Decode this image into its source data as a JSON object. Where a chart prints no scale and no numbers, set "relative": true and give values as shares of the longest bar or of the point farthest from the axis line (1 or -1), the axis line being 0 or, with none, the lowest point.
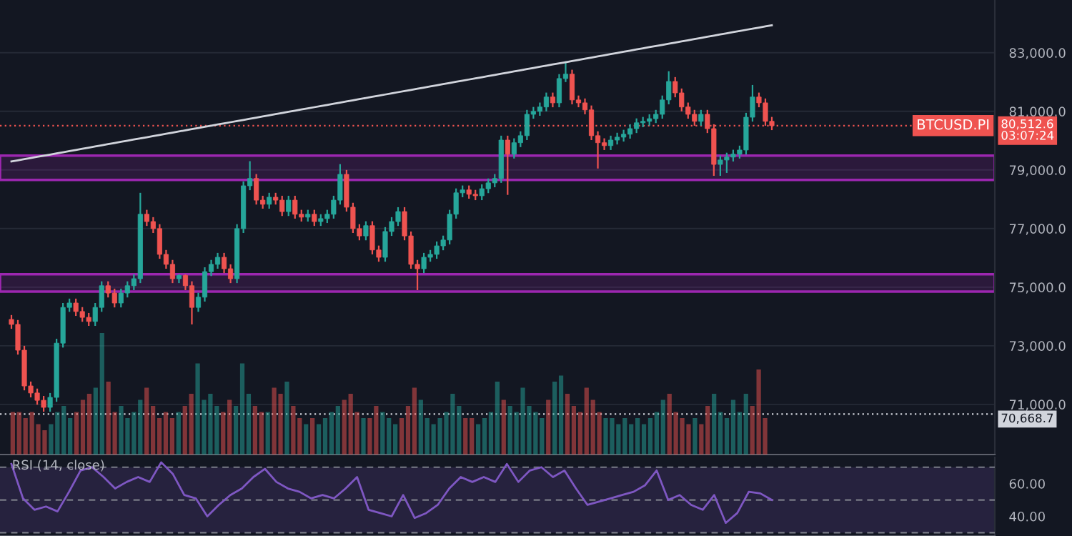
{
  "chart_data": [
    {
      "type": "candlestick",
      "tick_labels": "y",
      "grid": "y",
      "categories": [
        null,
        null,
        null,
        null,
        null,
        null,
        null,
        null,
        null,
        null,
        null,
        null,
        null,
        null,
        null,
        null,
        null,
        null,
        null,
        null,
        null,
        null,
        null,
        null,
        null,
        null,
        null,
        null,
        null,
        null,
        null,
        null,
        null,
        null,
        null,
        null,
        null,
        null,
        null,
        null,
        null,
        null,
        null,
        null,
        null,
        null,
        null,
        null,
        null,
        null,
        null,
        null,
        null,
        null,
        null,
        null,
        null,
        null,
        null,
        null,
        null,
        null,
        null,
        null,
        null,
        null,
        null,
        null,
        null,
        null,
        null,
        null,
        null,
        null,
        null,
        null,
        null,
        null,
        null,
        null,
        null,
        null,
        null,
        null,
        null,
        null,
        null,
        null,
        null,
        null,
        null,
        null,
        null,
        null,
        null,
        null,
        null,
        null,
        null,
        null,
        null,
        null,
        null,
        null,
        null,
        null,
        null,
        null,
        null,
        null,
        null,
        null,
        null,
        null,
        null,
        null,
        null,
        null,
        null
      ],
      "ohlc": [
        [
          73900,
          74050,
          73580,
          73730
        ],
        [
          73730,
          73880,
          72700,
          72850
        ],
        [
          72850,
          73000,
          71480,
          71630
        ],
        [
          71630,
          71780,
          71240,
          71390
        ],
        [
          71390,
          71540,
          70990,
          71140
        ],
        [
          71140,
          71290,
          70750,
          70900
        ],
        [
          70900,
          71390,
          70750,
          71240
        ],
        [
          71240,
          73240,
          71090,
          73090
        ],
        [
          73090,
          74460,
          72940,
          74310
        ],
        [
          74310,
          74610,
          74160,
          74460
        ],
        [
          74460,
          74610,
          74020,
          74170
        ],
        [
          74170,
          74320,
          73820,
          73970
        ],
        [
          73970,
          74120,
          73680,
          73830
        ],
        [
          73830,
          74460,
          73680,
          74310
        ],
        [
          74310,
          75200,
          74160,
          75050
        ],
        [
          75050,
          75200,
          74650,
          74800
        ],
        [
          74800,
          74950,
          74310,
          74460
        ],
        [
          74460,
          74950,
          74310,
          74800
        ],
        [
          74800,
          75200,
          74650,
          75050
        ],
        [
          75050,
          75440,
          74900,
          75290
        ],
        [
          75290,
          78220,
          75140,
          77490
        ],
        [
          77490,
          77640,
          77090,
          77240
        ],
        [
          77240,
          77390,
          76850,
          77000
        ],
        [
          77000,
          77150,
          75970,
          76120
        ],
        [
          76120,
          76270,
          75630,
          75780
        ],
        [
          75780,
          75930,
          75140,
          75290
        ],
        [
          75290,
          75440,
          75140,
          75400
        ],
        [
          75400,
          75440,
          74900,
          75050
        ],
        [
          75050,
          75200,
          73730,
          74310
        ],
        [
          74310,
          74810,
          74160,
          74660
        ],
        [
          74660,
          75680,
          74510,
          75530
        ],
        [
          75530,
          75930,
          75380,
          75780
        ],
        [
          75780,
          76170,
          75630,
          76020
        ],
        [
          76020,
          76170,
          75480,
          75630
        ],
        [
          75630,
          75780,
          75140,
          75290
        ],
        [
          75290,
          77150,
          75140,
          77000
        ],
        [
          77000,
          78610,
          76850,
          78460
        ],
        [
          78460,
          79300,
          78310,
          78710
        ],
        [
          78710,
          78860,
          77820,
          77970
        ],
        [
          77970,
          78120,
          77680,
          77830
        ],
        [
          77830,
          78220,
          77680,
          78070
        ],
        [
          78070,
          78220,
          77820,
          77970
        ],
        [
          77970,
          78120,
          77430,
          77580
        ],
        [
          77580,
          78120,
          77430,
          77970
        ],
        [
          77970,
          78120,
          77340,
          77490
        ],
        [
          77490,
          77640,
          77240,
          77390
        ],
        [
          77390,
          77640,
          77240,
          77490
        ],
        [
          77490,
          77640,
          77090,
          77240
        ],
        [
          77240,
          77490,
          77090,
          77340
        ],
        [
          77340,
          77640,
          77190,
          77490
        ],
        [
          77490,
          78120,
          77340,
          77970
        ],
        [
          77970,
          79200,
          77820,
          78850
        ],
        [
          78850,
          79000,
          77580,
          77730
        ],
        [
          77730,
          77880,
          76850,
          77000
        ],
        [
          77000,
          77150,
          76600,
          76750
        ],
        [
          76750,
          77250,
          76600,
          77100
        ],
        [
          77100,
          77250,
          76120,
          76270
        ],
        [
          76270,
          76420,
          75870,
          76020
        ],
        [
          76020,
          77050,
          75870,
          76900
        ],
        [
          76900,
          77390,
          76750,
          77240
        ],
        [
          77240,
          77730,
          77090,
          77580
        ],
        [
          77580,
          77730,
          76600,
          76750
        ],
        [
          76750,
          76900,
          75630,
          75780
        ],
        [
          75780,
          75930,
          74900,
          75630
        ],
        [
          75630,
          76170,
          75480,
          76020
        ],
        [
          76020,
          76270,
          75870,
          76120
        ],
        [
          76120,
          76560,
          75970,
          76410
        ],
        [
          76410,
          76760,
          76260,
          76610
        ],
        [
          76610,
          77640,
          76460,
          77490
        ],
        [
          77490,
          78370,
          77340,
          78220
        ],
        [
          78220,
          78470,
          78070,
          78320
        ],
        [
          78320,
          78470,
          78020,
          78170
        ],
        [
          78170,
          78320,
          77970,
          78120
        ],
        [
          78120,
          78510,
          77970,
          78360
        ],
        [
          78360,
          78710,
          78210,
          78560
        ],
        [
          78560,
          78860,
          78410,
          78710
        ],
        [
          78710,
          80170,
          78560,
          80020
        ],
        [
          80020,
          80170,
          78150,
          79540
        ],
        [
          79540,
          80080,
          79390,
          79930
        ],
        [
          79930,
          80320,
          79780,
          80170
        ],
        [
          80170,
          81050,
          80020,
          80900
        ],
        [
          80900,
          81150,
          80750,
          81000
        ],
        [
          81000,
          81300,
          80850,
          81150
        ],
        [
          81150,
          81640,
          81000,
          81490
        ],
        [
          81490,
          81640,
          81140,
          81290
        ],
        [
          81290,
          82270,
          81140,
          82120
        ],
        [
          82120,
          82710,
          82000,
          82270
        ],
        [
          82270,
          82420,
          81240,
          81390
        ],
        [
          81390,
          81540,
          81140,
          81290
        ],
        [
          81290,
          81440,
          80900,
          81050
        ],
        [
          81050,
          81200,
          80020,
          80170
        ],
        [
          80170,
          80320,
          79050,
          79930
        ],
        [
          79930,
          80080,
          79680,
          79830
        ],
        [
          79830,
          80170,
          79680,
          80020
        ],
        [
          80020,
          80270,
          79870,
          80120
        ],
        [
          80120,
          80370,
          79970,
          80220
        ],
        [
          80220,
          80560,
          80070,
          80410
        ],
        [
          80410,
          80760,
          80260,
          80610
        ],
        [
          80610,
          80810,
          80460,
          80660
        ],
        [
          80660,
          80900,
          80510,
          80750
        ],
        [
          80750,
          81050,
          80600,
          80900
        ],
        [
          80900,
          81540,
          80750,
          81390
        ],
        [
          81390,
          82370,
          81240,
          82020
        ],
        [
          82020,
          82170,
          81480,
          81630
        ],
        [
          81630,
          81780,
          81000,
          81150
        ],
        [
          81150,
          81300,
          80750,
          80900
        ],
        [
          80900,
          81050,
          80510,
          80660
        ],
        [
          80660,
          81050,
          80510,
          80900
        ],
        [
          80900,
          81050,
          80260,
          80410
        ],
        [
          80410,
          80560,
          78800,
          79190
        ],
        [
          79190,
          79490,
          78800,
          79340
        ],
        [
          79340,
          79590,
          78900,
          79440
        ],
        [
          79440,
          79690,
          79290,
          79540
        ],
        [
          79540,
          79830,
          79390,
          79680
        ],
        [
          79680,
          80950,
          79530,
          80800
        ],
        [
          80800,
          81900,
          80650,
          81490
        ],
        [
          81490,
          81640,
          81140,
          81290
        ],
        [
          81290,
          81440,
          80510,
          80660
        ],
        [
          80660,
          80810,
          80360,
          80512.6
        ]
      ],
      "colors": [
        "#ef5350",
        "#ef5350",
        "#ef5350",
        "#ef5350",
        "#ef5350",
        "#ef5350",
        "#26a69a",
        "#26a69a",
        "#26a69a",
        "#26a69a",
        "#ef5350",
        "#ef5350",
        "#ef5350",
        "#26a69a",
        "#26a69a",
        "#ef5350",
        "#ef5350",
        "#26a69a",
        "#26a69a",
        "#26a69a",
        "#26a69a",
        "#ef5350",
        "#ef5350",
        "#ef5350",
        "#ef5350",
        "#ef5350",
        "#26a69a",
        "#ef5350",
        "#ef5350",
        "#26a69a",
        "#26a69a",
        "#26a69a",
        "#26a69a",
        "#ef5350",
        "#ef5350",
        "#26a69a",
        "#26a69a",
        "#26a69a",
        "#ef5350",
        "#ef5350",
        "#26a69a",
        "#ef5350",
        "#ef5350",
        "#26a69a",
        "#ef5350",
        "#ef5350",
        "#26a69a",
        "#ef5350",
        "#26a69a",
        "#26a69a",
        "#26a69a",
        "#26a69a",
        "#ef5350",
        "#ef5350",
        "#ef5350",
        "#26a69a",
        "#ef5350",
        "#ef5350",
        "#26a69a",
        "#26a69a",
        "#26a69a",
        "#ef5350",
        "#ef5350",
        "#ef5350",
        "#26a69a",
        "#26a69a",
        "#26a69a",
        "#26a69a",
        "#26a69a",
        "#26a69a",
        "#26a69a",
        "#ef5350",
        "#ef5350",
        "#26a69a",
        "#26a69a",
        "#26a69a",
        "#26a69a",
        "#ef5350",
        "#26a69a",
        "#26a69a",
        "#26a69a",
        "#26a69a",
        "#26a69a",
        "#26a69a",
        "#ef5350",
        "#26a69a",
        "#26a69a",
        "#ef5350",
        "#ef5350",
        "#ef5350",
        "#ef5350",
        "#ef5350",
        "#ef5350",
        "#26a69a",
        "#26a69a",
        "#26a69a",
        "#26a69a",
        "#26a69a",
        "#26a69a",
        "#26a69a",
        "#26a69a",
        "#26a69a",
        "#26a69a",
        "#ef5350",
        "#ef5350",
        "#ef5350",
        "#ef5350",
        "#26a69a",
        "#ef5350",
        "#ef5350",
        "#26a69a",
        "#26a69a",
        "#26a69a",
        "#26a69a",
        "#26a69a",
        "#26a69a",
        "#ef5350",
        "#ef5350",
        "#ef5350"
      ],
      "series": [
        {
          "type": "line",
          "color": "#d1d4dc",
          "values": [
            79290,
            79329,
            79369,
            79408,
            79448,
            79487,
            79526,
            79566,
            79605,
            79645,
            79684,
            79723,
            79763,
            79802,
            79842,
            79881,
            79920,
            79960,
            79999,
            80039,
            80078,
            80117,
            80157,
            80196,
            80236,
            80275,
            80314,
            80354,
            80393,
            80433,
            80472,
            80511,
            80551,
            80590,
            80630,
            80669,
            80708,
            80748,
            80787,
            80827,
            80866,
            80905,
            80945,
            80984,
            81024,
            81063,
            81102,
            81142,
            81181,
            81221,
            81260,
            81299,
            81339,
            81378,
            81418,
            81457,
            81496,
            81536,
            81575,
            81615,
            81654,
            81693,
            81733,
            81772,
            81812,
            81851,
            81890,
            81930,
            81969,
            82009,
            82048,
            82087,
            82127,
            82166,
            82206,
            82245,
            82284,
            82324,
            82363,
            82403,
            82442,
            82481,
            82521,
            82560,
            82600,
            82639,
            82678,
            82718,
            82757,
            82797,
            82836,
            82875,
            82915,
            82954,
            82994,
            83033,
            83072,
            83112,
            83151,
            83191,
            83230,
            83269,
            83309,
            83348,
            83388,
            83427,
            83466,
            83506,
            83545,
            83585,
            83624,
            83663,
            83703,
            83742,
            83782,
            83821,
            83860,
            83900,
            83939
          ]
        }
      ],
      "ylim": [
        69290,
        84800
      ],
      "yticks": [
        {
          "value": 71000,
          "label": "71,000.0"
        },
        {
          "value": 73000,
          "label": "73,000.0"
        },
        {
          "value": 75000,
          "label": "75,000.0"
        },
        {
          "value": 77000,
          "label": "77,000.0"
        },
        {
          "value": 79000,
          "label": "79,000.0"
        },
        {
          "value": 81000,
          "label": "81,000.0"
        },
        {
          "value": 83000,
          "label": "83,000.0"
        }
      ],
      "bands": [
        {
          "axis": "y",
          "from": 78660,
          "to": 79490,
          "color": "#9c27b0"
        },
        {
          "axis": "y",
          "from": 74850,
          "to": 75440,
          "color": "#9c27b0"
        }
      ],
      "ref_lines": [
        {
          "axis": "y",
          "value": 80512.6,
          "label": "80,512.6\n03:07:24",
          "color": "#ef5350",
          "line_style": "dotted"
        },
        {
          "axis": "y",
          "value": 70668.7,
          "label": "70,668.7",
          "color": "#d1d4dc",
          "line_style": "dotted"
        }
      ],
      "annotations": [
        "BTCUSD.PI"
      ]
    },
    {
      "type": "bar",
      "relative": true,
      "tick_labels": false,
      "categories": [
        null,
        null,
        null,
        null,
        null,
        null,
        null,
        null,
        null,
        null,
        null,
        null,
        null,
        null,
        null,
        null,
        null,
        null,
        null,
        null,
        null,
        null,
        null,
        null,
        null,
        null,
        null,
        null,
        null,
        null,
        null,
        null,
        null,
        null,
        null,
        null,
        null,
        null,
        null,
        null,
        null,
        null,
        null,
        null,
        null,
        null,
        null,
        null,
        null,
        null,
        null,
        null,
        null,
        null,
        null,
        null,
        null,
        null,
        null,
        null,
        null,
        null,
        null,
        null,
        null,
        null,
        null,
        null,
        null,
        null,
        null,
        null,
        null,
        null,
        null,
        null,
        null,
        null,
        null,
        null,
        null,
        null,
        null,
        null,
        null,
        null,
        null,
        null,
        null,
        null,
        null,
        null,
        null,
        null,
        null,
        null,
        null,
        null,
        null,
        null,
        null,
        null,
        null,
        null,
        null,
        null,
        null,
        null,
        null,
        null,
        null,
        null,
        null,
        null,
        null,
        null,
        null,
        null,
        null
      ],
      "values": [
        0.35,
        0.35,
        0.3,
        0.35,
        0.25,
        0.2,
        0.25,
        0.35,
        0.4,
        0.3,
        0.35,
        0.45,
        0.5,
        0.55,
        1.0,
        0.6,
        0.35,
        0.4,
        0.3,
        0.35,
        0.45,
        0.55,
        0.4,
        0.3,
        0.35,
        0.3,
        0.35,
        0.4,
        0.5,
        0.75,
        0.45,
        0.5,
        0.4,
        0.35,
        0.45,
        0.4,
        0.75,
        0.5,
        0.4,
        0.35,
        0.35,
        0.55,
        0.5,
        0.6,
        0.4,
        0.3,
        0.25,
        0.3,
        0.25,
        0.3,
        0.35,
        0.4,
        0.45,
        0.5,
        0.35,
        0.3,
        0.3,
        0.4,
        0.35,
        0.3,
        0.25,
        0.3,
        0.4,
        0.55,
        0.45,
        0.3,
        0.25,
        0.3,
        0.35,
        0.5,
        0.4,
        0.3,
        0.3,
        0.25,
        0.3,
        0.35,
        0.6,
        0.45,
        0.4,
        0.35,
        0.55,
        0.4,
        0.35,
        0.3,
        0.45,
        0.6,
        0.65,
        0.5,
        0.4,
        0.35,
        0.55,
        0.45,
        0.35,
        0.3,
        0.3,
        0.25,
        0.3,
        0.25,
        0.3,
        0.25,
        0.3,
        0.35,
        0.45,
        0.5,
        0.35,
        0.3,
        0.25,
        0.3,
        0.25,
        0.4,
        0.5,
        0.35,
        0.3,
        0.45,
        0.35,
        0.5,
        0.4,
        0.7,
        0.3
      ],
      "colors": [
        "#ef5350",
        "#ef5350",
        "#ef5350",
        "#ef5350",
        "#ef5350",
        "#ef5350",
        "#26a69a",
        "#26a69a",
        "#26a69a",
        "#26a69a",
        "#ef5350",
        "#ef5350",
        "#ef5350",
        "#26a69a",
        "#26a69a",
        "#ef5350",
        "#ef5350",
        "#26a69a",
        "#26a69a",
        "#26a69a",
        "#26a69a",
        "#ef5350",
        "#ef5350",
        "#ef5350",
        "#ef5350",
        "#ef5350",
        "#26a69a",
        "#ef5350",
        "#ef5350",
        "#26a69a",
        "#26a69a",
        "#26a69a",
        "#26a69a",
        "#ef5350",
        "#ef5350",
        "#26a69a",
        "#26a69a",
        "#26a69a",
        "#ef5350",
        "#ef5350",
        "#26a69a",
        "#ef5350",
        "#ef5350",
        "#26a69a",
        "#ef5350",
        "#ef5350",
        "#26a69a",
        "#ef5350",
        "#26a69a",
        "#26a69a",
        "#26a69a",
        "#26a69a",
        "#ef5350",
        "#ef5350",
        "#ef5350",
        "#26a69a",
        "#ef5350",
        "#ef5350",
        "#26a69a",
        "#26a69a",
        "#26a69a",
        "#ef5350",
        "#ef5350",
        "#ef5350",
        "#26a69a",
        "#26a69a",
        "#26a69a",
        "#26a69a",
        "#26a69a",
        "#26a69a",
        "#26a69a",
        "#ef5350",
        "#ef5350",
        "#26a69a",
        "#26a69a",
        "#26a69a",
        "#26a69a",
        "#ef5350",
        "#26a69a",
        "#26a69a",
        "#26a69a",
        "#26a69a",
        "#26a69a",
        "#26a69a",
        "#ef5350",
        "#26a69a",
        "#26a69a",
        "#ef5350",
        "#ef5350",
        "#ef5350",
        "#ef5350",
        "#ef5350",
        "#ef5350",
        "#26a69a",
        "#26a69a",
        "#26a69a",
        "#26a69a",
        "#26a69a",
        "#26a69a",
        "#26a69a",
        "#26a69a",
        "#26a69a",
        "#26a69a",
        "#ef5350",
        "#ef5350",
        "#ef5350",
        "#ef5350",
        "#26a69a",
        "#ef5350",
        "#ef5350",
        "#26a69a",
        "#26a69a",
        "#26a69a",
        "#26a69a",
        "#26a69a",
        "#26a69a",
        "#ef5350",
        "#ef5350",
        "#ef5350"
      ]
    },
    {
      "type": "line",
      "tick_labels": "y",
      "categories": [
        null,
        null,
        null,
        null,
        null,
        null,
        null,
        null,
        null,
        null,
        null,
        null,
        null,
        null,
        null,
        null,
        null,
        null,
        null,
        null,
        null,
        null,
        null,
        null,
        null,
        null,
        null,
        null,
        null,
        null,
        null,
        null,
        null,
        null,
        null,
        null,
        null,
        null,
        null,
        null,
        null,
        null,
        null,
        null,
        null,
        null,
        null,
        null,
        null,
        null,
        null,
        null,
        null,
        null,
        null,
        null,
        null,
        null,
        null,
        null,
        null,
        null,
        null,
        null,
        null,
        null,
        null
      ],
      "series": [
        {
          "color": "#7e57c2",
          "values": [
            72,
            51,
            44,
            46,
            43,
            55,
            68,
            70,
            64,
            57,
            61,
            64,
            61,
            73,
            66,
            53,
            51,
            40,
            47,
            53,
            57,
            64,
            69,
            61,
            57,
            55,
            51,
            53,
            51,
            57,
            64,
            44,
            42,
            40,
            53,
            39,
            42,
            47,
            57,
            64,
            61,
            64,
            61,
            72,
            61,
            68,
            70,
            64,
            68,
            57,
            47,
            49,
            51,
            53,
            55,
            59,
            68,
            50,
            53,
            47,
            44,
            53,
            36,
            42,
            55,
            54,
            50
          ]
        }
      ],
      "ylim": [
        28,
        76
      ],
      "yticks": [
        {
          "value": 40,
          "label": "40.00"
        },
        {
          "value": 60,
          "label": "60.00"
        }
      ],
      "bands": [
        {
          "axis": "y",
          "from": 30,
          "to": 70,
          "color": "#7e57c2"
        }
      ],
      "ref_lines": [
        {
          "axis": "y",
          "value": 70,
          "color": "#787b86",
          "line_style": "dashed"
        },
        {
          "axis": "y",
          "value": 50,
          "color": "#787b86",
          "line_style": "dashed"
        },
        {
          "axis": "y",
          "value": 30,
          "color": "#787b86",
          "line_style": "dashed"
        }
      ],
      "annotations": [
        "RSI (14, close)"
      ]
    }
  ]
}
